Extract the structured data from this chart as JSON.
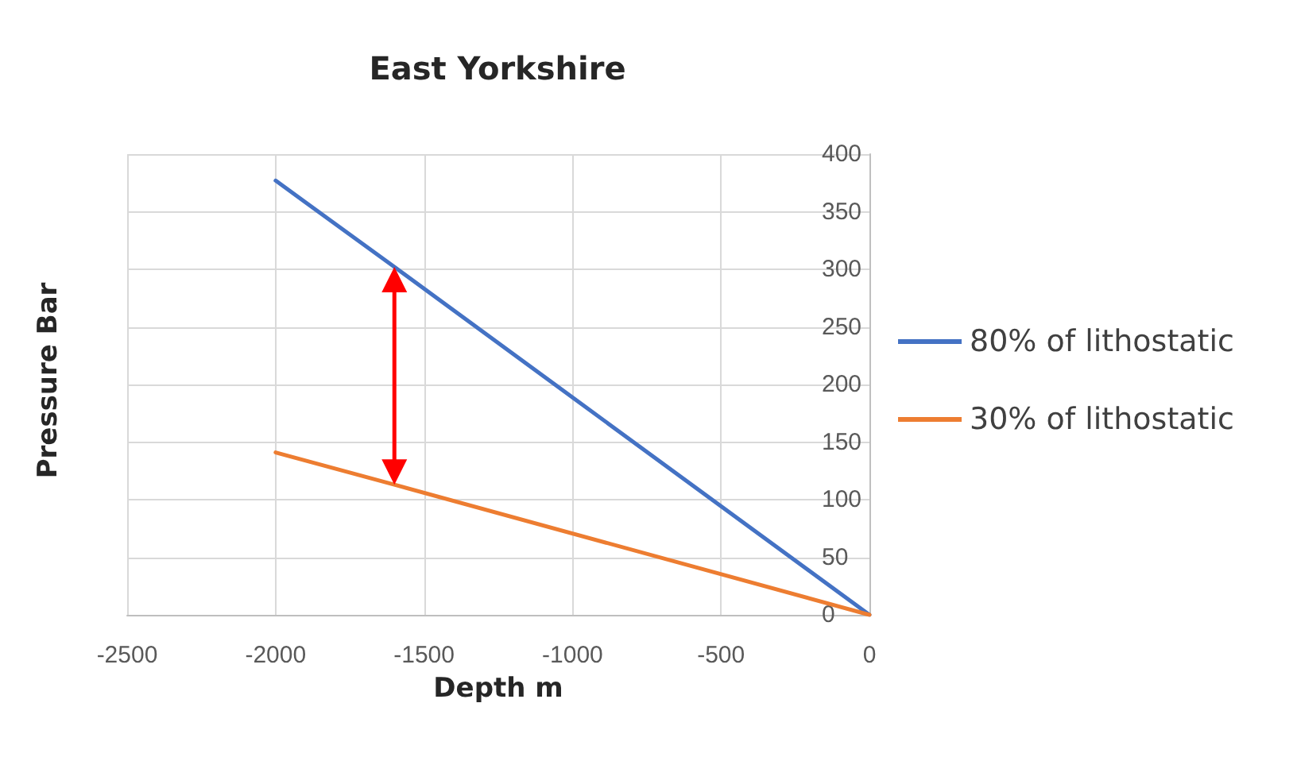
{
  "chart_data": {
    "type": "line",
    "title": "East Yorkshire",
    "xlabel": "Depth m",
    "ylabel": "Pressure Bar",
    "x": [
      -2000,
      -1600,
      0
    ],
    "series": [
      {
        "name": "80% of lithostatic",
        "color": "#4472c4",
        "values": [
          377,
          302,
          0
        ]
      },
      {
        "name": "30% of lithostatic",
        "color": "#ed7d31",
        "values": [
          141,
          113,
          0
        ]
      }
    ],
    "xlim": [
      -2500,
      0
    ],
    "xticks": [
      -2500,
      -2000,
      -1500,
      -1000,
      -500,
      0
    ],
    "ylim": [
      0,
      400
    ],
    "yticks": [
      0,
      50,
      100,
      150,
      200,
      250,
      300,
      350,
      400
    ],
    "grid": true,
    "legend": "right",
    "marker": "none",
    "line_style": "solid"
  }
}
